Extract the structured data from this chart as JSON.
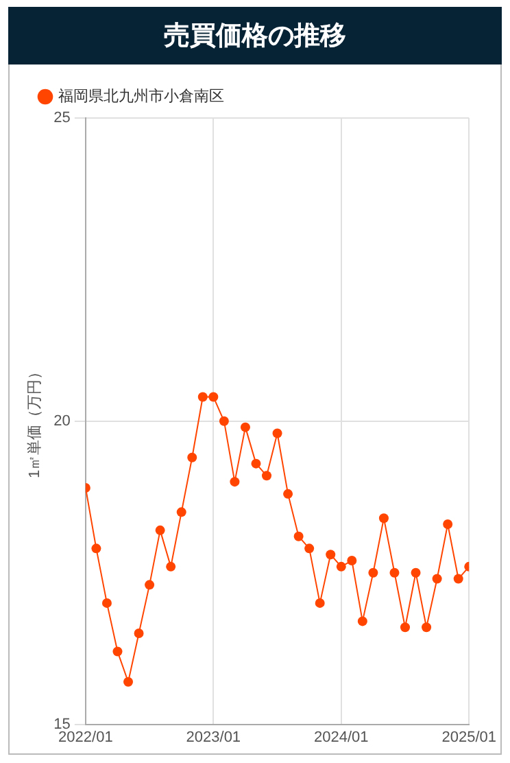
{
  "chart_data": {
    "type": "line",
    "title": "売買価格の推移",
    "ylabel": "1㎡単価（万円）",
    "x": [
      "2022-01",
      "2022-02",
      "2022-03",
      "2022-04",
      "2022-05",
      "2022-06",
      "2022-07",
      "2022-08",
      "2022-09",
      "2022-10",
      "2022-11",
      "2022-12",
      "2023-01",
      "2023-02",
      "2023-03",
      "2023-04",
      "2023-05",
      "2023-06",
      "2023-07",
      "2023-08",
      "2023-09",
      "2023-10",
      "2023-11",
      "2023-12",
      "2024-01",
      "2024-02",
      "2024-03",
      "2024-04",
      "2024-05",
      "2024-06",
      "2024-07",
      "2024-08",
      "2024-09",
      "2024-10",
      "2024-11",
      "2024-12",
      "2025-01"
    ],
    "series": [
      {
        "name": "福岡県北九州市小倉南区",
        "color": "#ff4500",
        "values": [
          18.9,
          17.9,
          17.0,
          16.2,
          15.7,
          16.5,
          17.3,
          18.2,
          17.6,
          18.5,
          19.4,
          20.4,
          20.4,
          20.0,
          19.0,
          19.9,
          19.3,
          19.1,
          19.8,
          18.8,
          18.1,
          17.9,
          17.0,
          17.8,
          17.6,
          17.7,
          16.7,
          17.5,
          18.4,
          17.5,
          16.6,
          17.5,
          16.6,
          17.4,
          18.3,
          17.4,
          17.6
        ]
      }
    ],
    "xlim": [
      "2022-01",
      "2025-01"
    ],
    "xticks": [
      {
        "value": "2022-01",
        "label": "2022/01"
      },
      {
        "value": "2023-01",
        "label": "2023/01"
      },
      {
        "value": "2024-01",
        "label": "2024/01"
      },
      {
        "value": "2025-01",
        "label": "2025/01"
      }
    ],
    "ylim": [
      15,
      25
    ],
    "yticks": [
      15,
      20,
      25
    ],
    "grid": true,
    "legend": "top left",
    "marker": "circle",
    "line_style": "solid"
  }
}
